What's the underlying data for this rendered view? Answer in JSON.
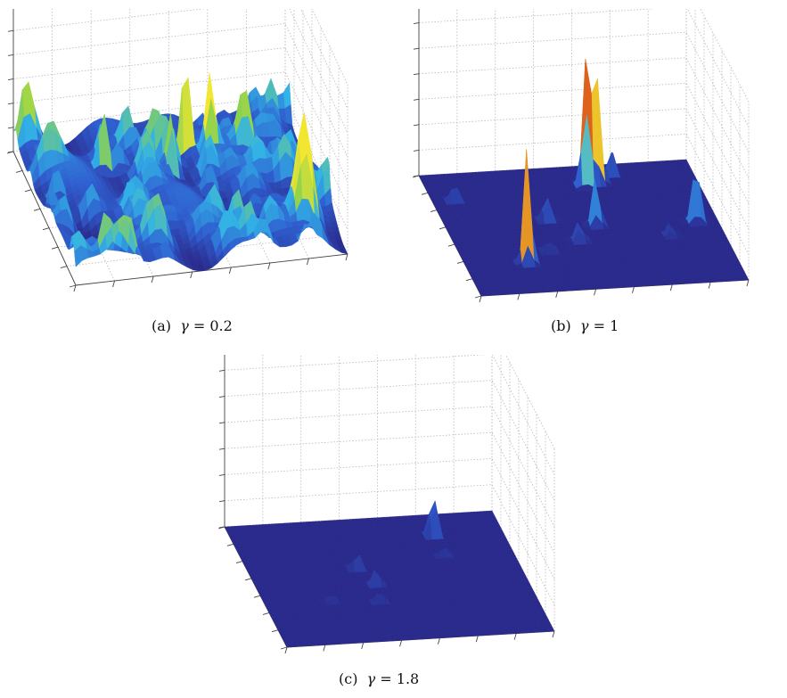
{
  "figure": {
    "panels": [
      {
        "id": "a",
        "caption_prefix": "(a)",
        "gamma_symbol": "γ",
        "gamma_value": "0.2",
        "surface_character": "dense rough terrain with many peaks",
        "peak_color": "#f2e630"
      },
      {
        "id": "b",
        "caption_prefix": "(b)",
        "gamma_symbol": "γ",
        "gamma_value": "1",
        "surface_character": "mostly flat with sparse peaks",
        "peak_color": "#7a0b12"
      },
      {
        "id": "c",
        "caption_prefix": "(c)",
        "gamma_symbol": "γ",
        "gamma_value": "1.8",
        "surface_character": "flat with a single dominant spike",
        "peak_color": "#5c0a10"
      }
    ]
  },
  "chart_data": [
    {
      "type": "surface3d",
      "title": "",
      "xlabel": "",
      "ylabel": "",
      "zlabel": "",
      "parameter": {
        "name": "γ",
        "value": 0.2
      },
      "grid": true,
      "colormap": [
        "#2a2a8c",
        "#2f5fd0",
        "#32b3e6",
        "#8fd24d",
        "#f2e630"
      ]
    },
    {
      "type": "surface3d",
      "title": "",
      "xlabel": "",
      "ylabel": "",
      "zlabel": "",
      "parameter": {
        "name": "γ",
        "value": 1
      },
      "grid": true,
      "colormap": [
        "#2a2a8c",
        "#2f5fd0",
        "#32b3e6",
        "#f2e630",
        "#d84a1a",
        "#7a0b12"
      ]
    },
    {
      "type": "surface3d",
      "title": "",
      "xlabel": "",
      "ylabel": "",
      "zlabel": "",
      "parameter": {
        "name": "γ",
        "value": 1.8
      },
      "grid": true,
      "colormap": [
        "#2a2a8c",
        "#2f5fd0",
        "#32b3e6",
        "#d84a1a",
        "#5c0a10"
      ]
    }
  ]
}
